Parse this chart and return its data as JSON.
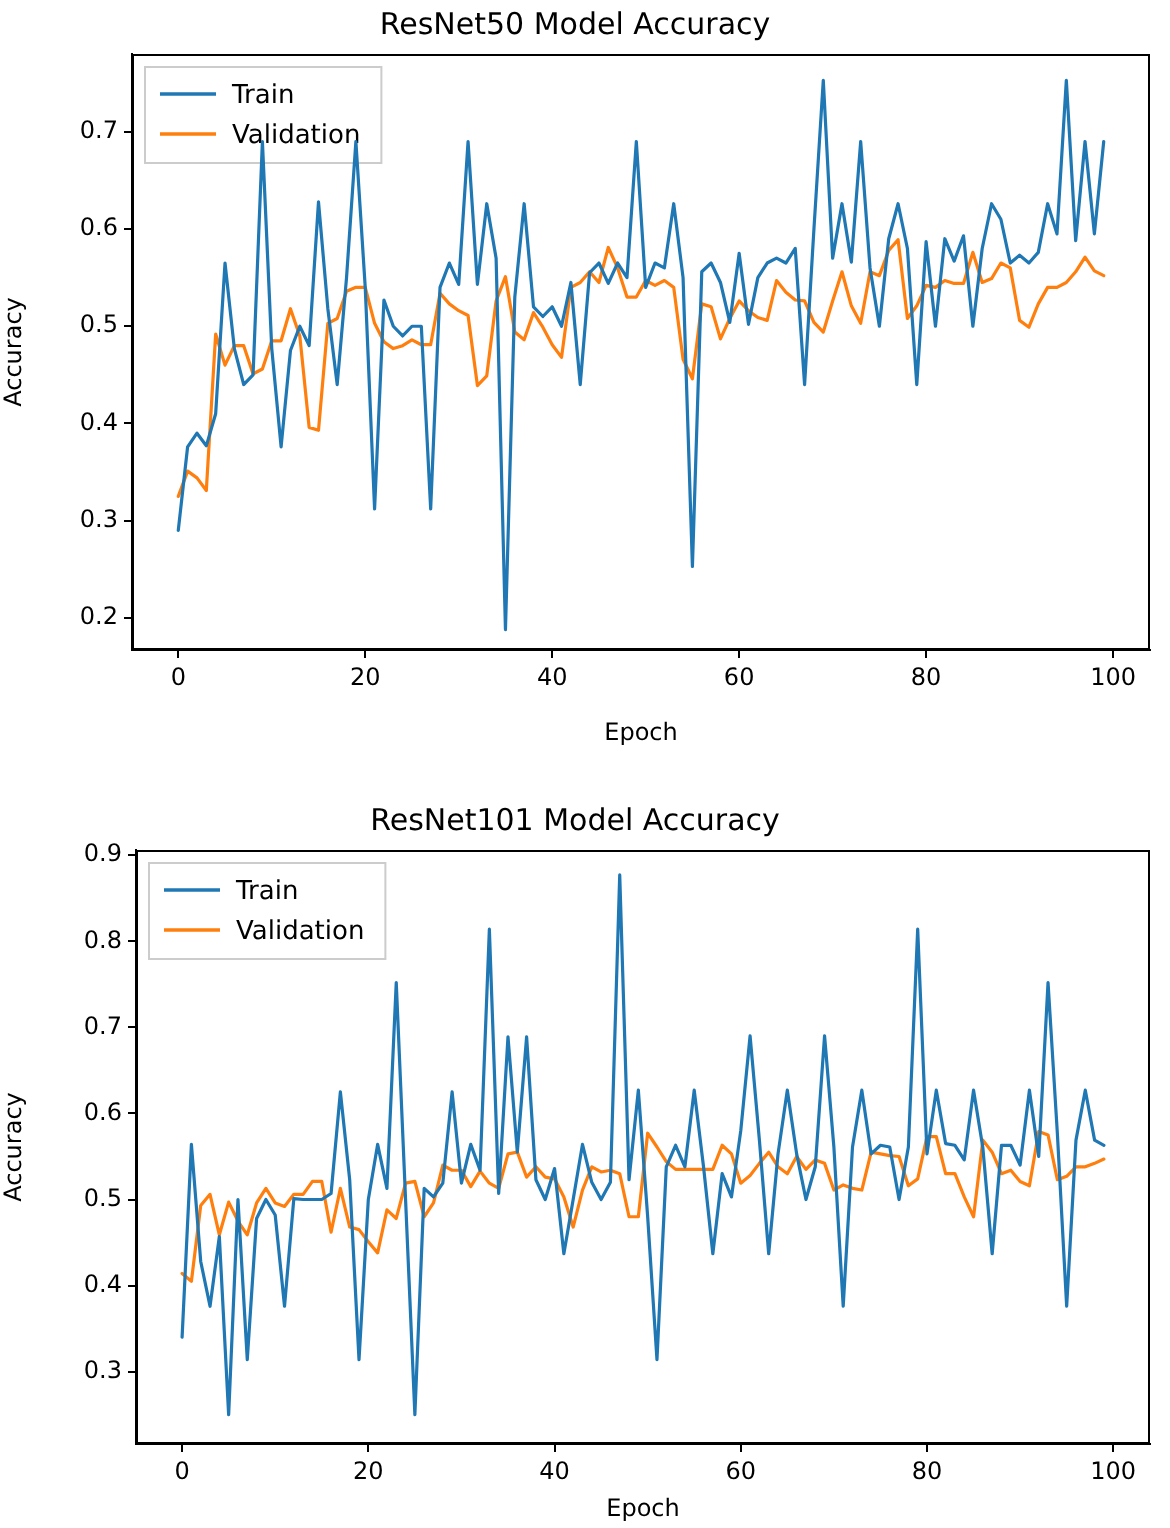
{
  "chart_data": [
    {
      "type": "line",
      "title": "ResNet50 Model Accuracy",
      "xlabel": "Epoch",
      "ylabel": "Accuracy",
      "legend": "top left",
      "grid": false,
      "marker": "none",
      "line_style": "solid",
      "x": [
        0,
        1,
        2,
        3,
        4,
        5,
        6,
        7,
        8,
        9,
        10,
        11,
        12,
        13,
        14,
        15,
        16,
        17,
        18,
        19,
        20,
        21,
        22,
        23,
        24,
        25,
        26,
        27,
        28,
        29,
        30,
        31,
        32,
        33,
        34,
        35,
        36,
        37,
        38,
        39,
        40,
        41,
        42,
        43,
        44,
        45,
        46,
        47,
        48,
        49,
        50,
        51,
        52,
        53,
        54,
        55,
        56,
        57,
        58,
        59,
        60,
        61,
        62,
        63,
        64,
        65,
        66,
        67,
        68,
        69,
        70,
        71,
        72,
        73,
        74,
        75,
        76,
        77,
        78,
        79,
        80,
        81,
        82,
        83,
        84,
        85,
        86,
        87,
        88,
        89,
        90,
        91,
        92,
        93,
        94,
        95,
        96,
        97,
        98,
        99
      ],
      "xlim": [
        -4.95,
        103.95
      ],
      "xticks": [
        0,
        20,
        40,
        60,
        80,
        100
      ],
      "ylim": [
        0.167,
        0.78
      ],
      "yticks": [
        0.2,
        0.3,
        0.4,
        0.5,
        0.6,
        0.7
      ],
      "series": [
        {
          "name": "Train",
          "color": "#1f77b4",
          "values": [
            0.29,
            0.376,
            0.39,
            0.377,
            0.41,
            0.565,
            0.477,
            0.44,
            0.45,
            0.69,
            0.477,
            0.376,
            0.475,
            0.5,
            0.48,
            0.628,
            0.518,
            0.44,
            0.55,
            0.69,
            0.54,
            0.312,
            0.527,
            0.5,
            0.49,
            0.5,
            0.5,
            0.312,
            0.54,
            0.565,
            0.543,
            0.69,
            0.543,
            0.626,
            0.57,
            0.188,
            0.53,
            0.626,
            0.52,
            0.51,
            0.52,
            0.5,
            0.545,
            0.44,
            0.555,
            0.565,
            0.544,
            0.565,
            0.55,
            0.69,
            0.54,
            0.565,
            0.56,
            0.626,
            0.55,
            0.253,
            0.556,
            0.565,
            0.545,
            0.504,
            0.575,
            0.502,
            0.55,
            0.565,
            0.57,
            0.565,
            0.58,
            0.44,
            0.6,
            0.753,
            0.57,
            0.626,
            0.566,
            0.69,
            0.56,
            0.5,
            0.59,
            0.626,
            0.58,
            0.44,
            0.587,
            0.5,
            0.59,
            0.567,
            0.593,
            0.5,
            0.58,
            0.626,
            0.61,
            0.565,
            0.573,
            0.565,
            0.576,
            0.626,
            0.595,
            0.753,
            0.588,
            0.69,
            0.595,
            0.69
          ]
        },
        {
          "name": "Validation",
          "color": "#ff7f0e",
          "values": [
            0.325,
            0.351,
            0.344,
            0.331,
            0.492,
            0.46,
            0.48,
            0.48,
            0.451,
            0.456,
            0.485,
            0.485,
            0.518,
            0.49,
            0.396,
            0.393,
            0.503,
            0.508,
            0.536,
            0.54,
            0.54,
            0.503,
            0.484,
            0.477,
            0.48,
            0.486,
            0.481,
            0.481,
            0.534,
            0.523,
            0.516,
            0.511,
            0.439,
            0.449,
            0.526,
            0.551,
            0.494,
            0.486,
            0.514,
            0.499,
            0.481,
            0.468,
            0.54,
            0.545,
            0.556,
            0.545,
            0.581,
            0.56,
            0.53,
            0.53,
            0.547,
            0.542,
            0.547,
            0.54,
            0.466,
            0.446,
            0.523,
            0.52,
            0.487,
            0.508,
            0.526,
            0.516,
            0.509,
            0.506,
            0.547,
            0.535,
            0.527,
            0.526,
            0.504,
            0.494,
            0.526,
            0.556,
            0.521,
            0.503,
            0.556,
            0.552,
            0.578,
            0.589,
            0.508,
            0.521,
            0.542,
            0.54,
            0.547,
            0.544,
            0.544,
            0.576,
            0.545,
            0.549,
            0.565,
            0.56,
            0.506,
            0.499,
            0.523,
            0.54,
            0.54,
            0.545,
            0.556,
            0.571,
            0.557,
            0.552
          ]
        }
      ]
    },
    {
      "type": "line",
      "title": "ResNet101 Model Accuracy",
      "xlabel": "Epoch",
      "ylabel": "Accuracy",
      "legend": "top left",
      "grid": false,
      "marker": "none",
      "line_style": "solid",
      "x": [
        0,
        1,
        2,
        3,
        4,
        5,
        6,
        7,
        8,
        9,
        10,
        11,
        12,
        13,
        14,
        15,
        16,
        17,
        18,
        19,
        20,
        21,
        22,
        23,
        24,
        25,
        26,
        27,
        28,
        29,
        30,
        31,
        32,
        33,
        34,
        35,
        36,
        37,
        38,
        39,
        40,
        41,
        42,
        43,
        44,
        45,
        46,
        47,
        48,
        49,
        50,
        51,
        52,
        53,
        54,
        55,
        56,
        57,
        58,
        59,
        60,
        61,
        62,
        63,
        64,
        65,
        66,
        67,
        68,
        69,
        70,
        71,
        72,
        73,
        74,
        75,
        76,
        77,
        78,
        79,
        80,
        81,
        82,
        83,
        84,
        85,
        86,
        87,
        88,
        89,
        90,
        91,
        92,
        93,
        94,
        95,
        96,
        97,
        98,
        99
      ],
      "xlim": [
        -4.95,
        103.95
      ],
      "xticks": [
        0,
        20,
        40,
        60,
        80,
        100
      ],
      "ylim": [
        0.216,
        0.906
      ],
      "yticks": [
        0.3,
        0.4,
        0.5,
        0.6,
        0.7,
        0.8,
        0.9
      ],
      "series": [
        {
          "name": "Train",
          "color": "#1f77b4",
          "values": [
            0.34,
            0.564,
            0.428,
            0.376,
            0.457,
            0.25,
            0.5,
            0.314,
            0.478,
            0.5,
            0.482,
            0.376,
            0.501,
            0.5,
            0.5,
            0.5,
            0.507,
            0.625,
            0.523,
            0.314,
            0.5,
            0.564,
            0.513,
            0.752,
            0.5,
            0.25,
            0.513,
            0.503,
            0.519,
            0.625,
            0.519,
            0.564,
            0.534,
            0.814,
            0.507,
            0.689,
            0.555,
            0.689,
            0.523,
            0.5,
            0.536,
            0.437,
            0.5,
            0.564,
            0.52,
            0.5,
            0.52,
            0.877,
            0.523,
            0.627,
            0.48,
            0.314,
            0.538,
            0.563,
            0.538,
            0.627,
            0.538,
            0.437,
            0.53,
            0.503,
            0.58,
            0.69,
            0.569,
            0.437,
            0.553,
            0.627,
            0.553,
            0.5,
            0.538,
            0.69,
            0.561,
            0.376,
            0.561,
            0.627,
            0.553,
            0.563,
            0.561,
            0.5,
            0.561,
            0.814,
            0.553,
            0.627,
            0.565,
            0.563,
            0.546,
            0.627,
            0.56,
            0.437,
            0.563,
            0.563,
            0.54,
            0.627,
            0.55,
            0.752,
            0.577,
            0.376,
            0.569,
            0.627,
            0.569,
            0.563
          ]
        },
        {
          "name": "Validation",
          "color": "#ff7f0e",
          "values": [
            0.414,
            0.405,
            0.493,
            0.506,
            0.459,
            0.497,
            0.475,
            0.459,
            0.496,
            0.513,
            0.496,
            0.492,
            0.506,
            0.506,
            0.521,
            0.521,
            0.462,
            0.513,
            0.468,
            0.465,
            0.451,
            0.438,
            0.488,
            0.478,
            0.519,
            0.521,
            0.48,
            0.496,
            0.54,
            0.534,
            0.534,
            0.515,
            0.533,
            0.519,
            0.513,
            0.553,
            0.555,
            0.526,
            0.538,
            0.526,
            0.524,
            0.503,
            0.468,
            0.511,
            0.538,
            0.532,
            0.534,
            0.53,
            0.48,
            0.48,
            0.577,
            0.561,
            0.544,
            0.535,
            0.535,
            0.535,
            0.535,
            0.535,
            0.563,
            0.553,
            0.519,
            0.528,
            0.542,
            0.555,
            0.538,
            0.53,
            0.55,
            0.535,
            0.546,
            0.542,
            0.511,
            0.517,
            0.513,
            0.511,
            0.555,
            0.553,
            0.551,
            0.55,
            0.516,
            0.524,
            0.573,
            0.573,
            0.53,
            0.53,
            0.503,
            0.48,
            0.569,
            0.555,
            0.53,
            0.534,
            0.521,
            0.516,
            0.579,
            0.575,
            0.523,
            0.527,
            0.538,
            0.538,
            0.542,
            0.547
          ]
        }
      ]
    }
  ]
}
